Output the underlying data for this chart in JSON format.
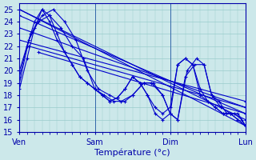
{
  "xlabel": "Température (°c)",
  "bg_color": "#cce8ea",
  "grid_color": "#99cccc",
  "line_color": "#0000cc",
  "marker": "+",
  "ylim": [
    15,
    25.5
  ],
  "yticks": [
    15,
    16,
    17,
    18,
    19,
    20,
    21,
    22,
    23,
    24,
    25
  ],
  "day_positions": [
    0,
    80,
    160,
    240
  ],
  "day_labels": [
    "Ven",
    "Sam",
    "Dim",
    "Lun"
  ],
  "xlim": [
    0,
    240
  ],
  "straight_lines": [
    {
      "x": [
        0,
        240
      ],
      "y": [
        25.0,
        15.5
      ]
    },
    {
      "x": [
        0,
        240
      ],
      "y": [
        25.0,
        16.0
      ]
    },
    {
      "x": [
        0,
        240
      ],
      "y": [
        24.5,
        16.5
      ]
    },
    {
      "x": [
        0,
        240
      ],
      "y": [
        23.5,
        17.0
      ]
    },
    {
      "x": [
        0,
        240
      ],
      "y": [
        22.5,
        17.5
      ]
    },
    {
      "x": [
        10,
        240
      ],
      "y": [
        22.0,
        17.0
      ]
    },
    {
      "x": [
        20,
        240
      ],
      "y": [
        21.5,
        16.5
      ]
    }
  ],
  "wavy_series": [
    {
      "x": [
        0,
        8,
        16,
        24,
        32,
        40,
        48,
        56,
        64,
        72,
        80,
        88,
        96,
        104,
        112,
        120,
        128,
        136,
        144,
        152,
        160,
        168,
        176,
        184,
        192,
        200,
        208,
        216,
        224,
        232,
        240
      ],
      "y": [
        18.5,
        21.0,
        23.5,
        25.0,
        24.5,
        23.0,
        21.5,
        20.5,
        19.5,
        19.0,
        18.5,
        18.0,
        17.5,
        17.8,
        18.5,
        19.5,
        19.0,
        18.0,
        16.5,
        16.0,
        16.5,
        20.5,
        21.0,
        20.5,
        18.5,
        17.5,
        17.0,
        16.5,
        16.5,
        16.5,
        15.5
      ]
    },
    {
      "x": [
        0,
        8,
        16,
        24,
        32,
        40,
        48,
        56,
        64,
        72,
        80,
        88,
        96,
        104,
        112,
        120,
        128,
        136,
        144,
        152,
        160,
        168,
        176,
        184,
        192,
        200,
        208,
        216,
        224,
        232,
        240
      ],
      "y": [
        19.5,
        22.0,
        24.0,
        25.0,
        24.0,
        22.5,
        21.5,
        20.5,
        19.5,
        19.0,
        18.5,
        18.0,
        17.5,
        17.8,
        18.5,
        19.5,
        19.0,
        18.0,
        17.0,
        16.5,
        17.0,
        20.5,
        21.0,
        20.5,
        18.0,
        17.5,
        17.0,
        16.5,
        16.5,
        16.0,
        15.5
      ]
    },
    {
      "x": [
        0,
        10,
        20,
        32,
        44,
        56,
        68,
        80,
        90,
        100,
        112,
        120,
        132,
        140,
        152,
        160,
        168,
        178,
        188,
        196,
        204,
        212,
        220,
        228,
        236,
        240
      ],
      "y": [
        19.0,
        22.5,
        24.0,
        24.5,
        23.5,
        22.0,
        21.0,
        18.5,
        18.0,
        17.5,
        17.5,
        18.0,
        19.0,
        19.0,
        18.0,
        16.5,
        16.0,
        20.0,
        21.0,
        20.5,
        18.0,
        17.5,
        16.5,
        16.5,
        16.0,
        15.5
      ]
    },
    {
      "x": [
        0,
        12,
        24,
        36,
        48,
        60,
        72,
        84,
        96,
        108,
        120,
        132,
        142,
        152,
        160,
        168,
        176,
        186,
        196,
        204,
        214,
        224,
        232,
        240
      ],
      "y": [
        20.0,
        23.0,
        24.5,
        25.0,
        24.0,
        22.5,
        20.0,
        18.5,
        18.0,
        17.5,
        18.0,
        19.0,
        19.0,
        18.0,
        16.5,
        16.0,
        19.5,
        20.5,
        20.5,
        18.0,
        17.0,
        16.5,
        16.0,
        15.5
      ]
    }
  ]
}
